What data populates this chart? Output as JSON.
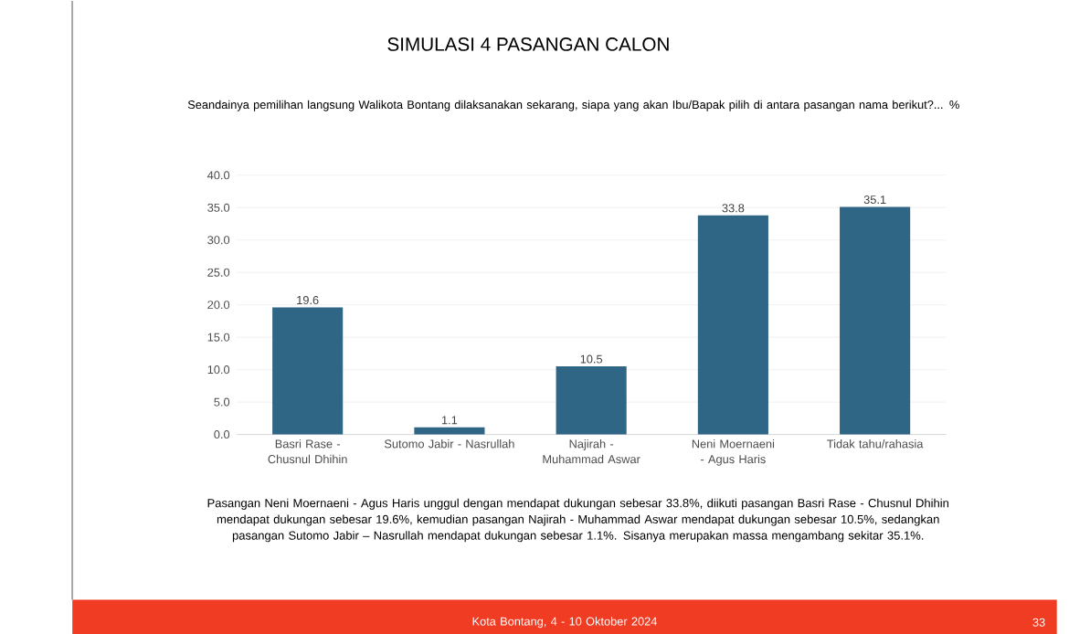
{
  "chart_data": {
    "type": "bar",
    "title": "SIMULASI 4 PASANGAN CALON",
    "subtitle": "Seandainya pemilihan langsung Walikota Bontang dilaksanakan sekarang, siapa yang akan Ibu/Bapak pilih di antara pasangan nama berikut?... %",
    "categories": [
      "Basri Rase - Chusnul Dhihin",
      "Sutomo Jabir - Nasrullah",
      "Najirah - Muhammad Aswar",
      "Neni Moernaeni - Agus Haris",
      "Tidak tahu/rahasia"
    ],
    "values": [
      19.6,
      1.1,
      10.5,
      33.8,
      35.1
    ],
    "color": "#2f6585",
    "ylim": [
      0,
      40
    ],
    "yticks": [
      {
        "value": 0,
        "label": "0.0"
      },
      {
        "value": 5,
        "label": "5.0"
      },
      {
        "value": 10,
        "label": "10.0"
      },
      {
        "value": 15,
        "label": "15.0"
      },
      {
        "value": 20,
        "label": "20.0"
      },
      {
        "value": 25,
        "label": "25.0"
      },
      {
        "value": 30,
        "label": "30.0"
      },
      {
        "value": 35,
        "label": "35.0"
      },
      {
        "value": 40,
        "label": "40.0"
      }
    ],
    "grid": "y",
    "data_labels": true,
    "annotations": [
      "Pasangan Neni Moernaeni - Agus Haris unggul dengan mendapat dukungan sebesar 33.8%, diikuti pasangan Basri Rase - Chusnul Dhihin mendapat dukungan sebesar 19.6%, kemudian pasangan Najirah - Muhammad Aswar mendapat dukungan sebesar 10.5%, sedangkan pasangan Sutomo Jabir – Nasrullah mendapat dukungan sebesar 1.1%. Sisanya merupakan massa mengambang sekitar 35.1%.",
      "Kota Bontang, 4 - 10 Oktober 2024",
      "33"
    ]
  }
}
